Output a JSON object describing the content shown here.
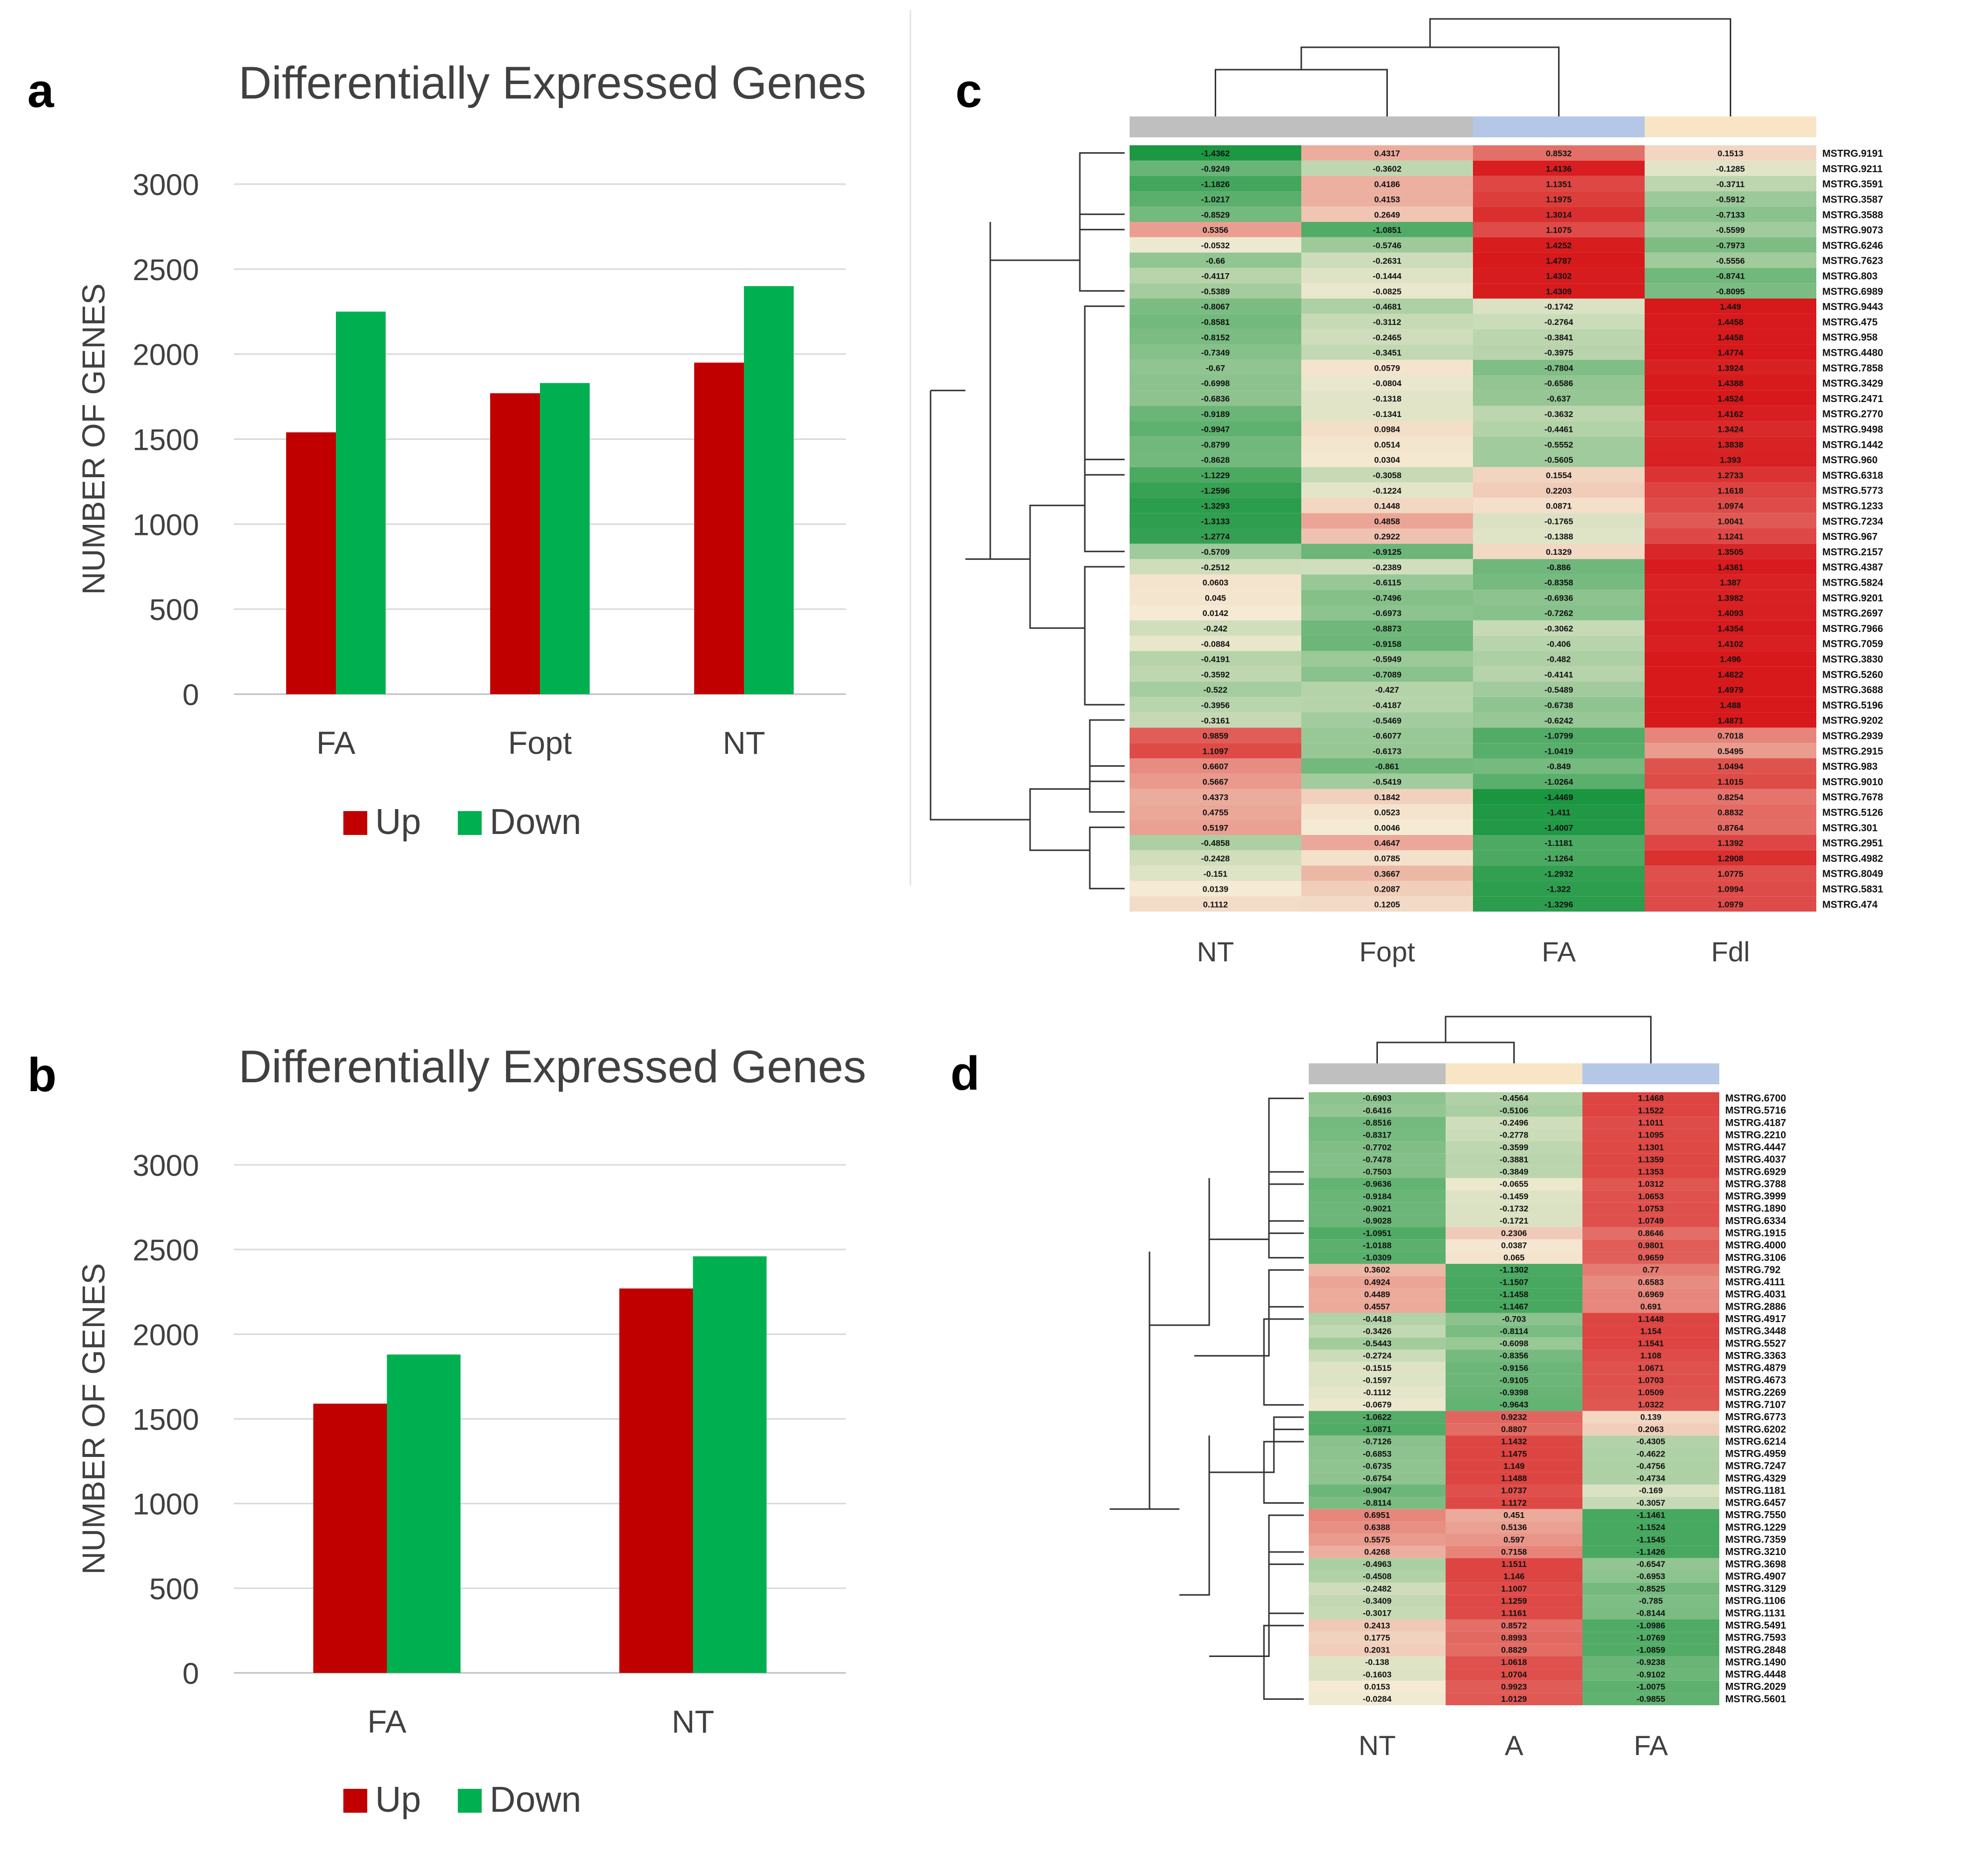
{
  "colors": {
    "up": "#c00000",
    "down": "#00b050",
    "grid": "#d9d9d9",
    "axis": "#bfbfbf",
    "text": "#404040",
    "hm_red": "#d7191c",
    "hm_green": "#1a9641",
    "hm_mid": "#f5ecd5",
    "grey": "#bfbfbf",
    "blue": "#b4c7e7",
    "beige": "#f8e5c5"
  },
  "chart_data": [
    {
      "panel": "a",
      "type": "bar",
      "title": "Differentially Expressed Genes",
      "ylabel": "NUMBER OF GENES",
      "xlabel": "",
      "categories": [
        "FA",
        "Fopt",
        "NT"
      ],
      "series": [
        {
          "name": "Up",
          "values": [
            1540,
            1770,
            1950
          ]
        },
        {
          "name": "Down",
          "values": [
            2250,
            1830,
            2400
          ]
        }
      ],
      "ylim": [
        0,
        3000
      ],
      "yticks": [
        0,
        500,
        1000,
        1500,
        2000,
        2500,
        3000
      ],
      "grid": true,
      "legend": "bottom"
    },
    {
      "panel": "b",
      "type": "bar",
      "title": "Differentially Expressed Genes",
      "ylabel": "NUMBER OF GENES",
      "xlabel": "",
      "categories": [
        "FA",
        "NT"
      ],
      "series": [
        {
          "name": "Up",
          "values": [
            1590,
            2270
          ]
        },
        {
          "name": "Down",
          "values": [
            1880,
            2460
          ]
        }
      ],
      "ylim": [
        0,
        3000
      ],
      "yticks": [
        0,
        500,
        1000,
        1500,
        2000,
        2500,
        3000
      ],
      "grid": true,
      "legend": "bottom"
    },
    {
      "panel": "c",
      "type": "heatmap",
      "columns": [
        "NT",
        "Fopt",
        "FA",
        "Fdl"
      ],
      "column_groups": [
        "grey",
        "grey",
        "blue",
        "beige"
      ],
      "rows": [
        [
          "MSTRG.9191",
          -1.4362,
          0.4317,
          0.8532,
          0.1513
        ],
        [
          "MSTRG.9211",
          -0.9249,
          -0.3602,
          1.4136,
          -0.1285
        ],
        [
          "MSTRG.3591",
          -1.1826,
          0.4186,
          1.1351,
          -0.3711
        ],
        [
          "MSTRG.3587",
          -1.0217,
          0.4153,
          1.1975,
          -0.5912
        ],
        [
          "MSTRG.3588",
          -0.8529,
          0.2649,
          1.3014,
          -0.7133
        ],
        [
          "MSTRG.9073",
          0.5356,
          -1.0851,
          1.1075,
          -0.5599
        ],
        [
          "MSTRG.6246",
          -0.0532,
          -0.5746,
          1.4252,
          -0.7973
        ],
        [
          "MSTRG.7623",
          -0.66,
          -0.2631,
          1.4787,
          -0.5556
        ],
        [
          "MSTRG.803",
          -0.4117,
          -0.1444,
          1.4302,
          -0.8741
        ],
        [
          "MSTRG.6989",
          -0.5389,
          -0.0825,
          1.4309,
          -0.8095
        ],
        [
          "MSTRG.9443",
          -0.8067,
          -0.4681,
          -0.1742,
          1.449
        ],
        [
          "MSTRG.475",
          -0.8581,
          -0.3112,
          -0.2764,
          1.4458
        ],
        [
          "MSTRG.958",
          -0.8152,
          -0.2465,
          -0.3841,
          1.4458
        ],
        [
          "MSTRG.4480",
          -0.7349,
          -0.3451,
          -0.3975,
          1.4774
        ],
        [
          "MSTRG.7858",
          -0.67,
          0.0579,
          -0.7804,
          1.3924
        ],
        [
          "MSTRG.3429",
          -0.6998,
          -0.0804,
          -0.6586,
          1.4388
        ],
        [
          "MSTRG.2471",
          -0.6836,
          -0.1318,
          -0.637,
          1.4524
        ],
        [
          "MSTRG.2770",
          -0.9189,
          -0.1341,
          -0.3632,
          1.4162
        ],
        [
          "MSTRG.9498",
          -0.9947,
          0.0984,
          -0.4461,
          1.3424
        ],
        [
          "MSTRG.1442",
          -0.8799,
          0.0514,
          -0.5552,
          1.3838
        ],
        [
          "MSTRG.960",
          -0.8628,
          0.0304,
          -0.5605,
          1.393
        ],
        [
          "MSTRG.6318",
          -1.1229,
          -0.3058,
          0.1554,
          1.2733
        ],
        [
          "MSTRG.5773",
          -1.2596,
          -0.1224,
          0.2203,
          1.1618
        ],
        [
          "MSTRG.1233",
          -1.3293,
          0.1448,
          0.0871,
          1.0974
        ],
        [
          "MSTRG.7234",
          -1.3133,
          0.4858,
          -0.1765,
          1.0041
        ],
        [
          "MSTRG.967",
          -1.2774,
          0.2922,
          -0.1388,
          1.1241
        ],
        [
          "MSTRG.2157",
          -0.5709,
          -0.9125,
          0.1329,
          1.3505
        ],
        [
          "MSTRG.4387",
          -0.2512,
          -0.2389,
          -0.886,
          1.4361
        ],
        [
          "MSTRG.5824",
          0.0603,
          -0.6115,
          -0.8358,
          1.387
        ],
        [
          "MSTRG.9201",
          0.045,
          -0.7496,
          -0.6936,
          1.3982
        ],
        [
          "MSTRG.2697",
          0.0142,
          -0.6973,
          -0.7262,
          1.4093
        ],
        [
          "MSTRG.7966",
          -0.242,
          -0.8873,
          -0.3062,
          1.4354
        ],
        [
          "MSTRG.7059",
          -0.0884,
          -0.9158,
          -0.406,
          1.4102
        ],
        [
          "MSTRG.3830",
          -0.4191,
          -0.5949,
          -0.482,
          1.496
        ],
        [
          "MSTRG.5260",
          -0.3592,
          -0.7089,
          -0.4141,
          1.4822
        ],
        [
          "MSTRG.3688",
          -0.522,
          -0.427,
          -0.5489,
          1.4979
        ],
        [
          "MSTRG.5196",
          -0.3956,
          -0.4187,
          -0.6738,
          1.488
        ],
        [
          "MSTRG.9202",
          -0.3161,
          -0.5469,
          -0.6242,
          1.4871
        ],
        [
          "MSTRG.2939",
          0.9859,
          -0.6077,
          -1.0799,
          0.7018
        ],
        [
          "MSTRG.2915",
          1.1097,
          -0.6173,
          -1.0419,
          0.5495
        ],
        [
          "MSTRG.983",
          0.6607,
          -0.861,
          -0.849,
          1.0494
        ],
        [
          "MSTRG.9010",
          0.5667,
          -0.5419,
          -1.0264,
          1.1015
        ],
        [
          "MSTRG.7678",
          0.4373,
          0.1842,
          -1.4469,
          0.8254
        ],
        [
          "MSTRG.5126",
          0.4755,
          0.0523,
          -1.411,
          0.8832
        ],
        [
          "MSTRG.301",
          0.5197,
          0.0046,
          -1.4007,
          0.8764
        ],
        [
          "MSTRG.2951",
          -0.4858,
          0.4647,
          -1.1181,
          1.1392
        ],
        [
          "MSTRG.4982",
          -0.2428,
          0.0785,
          -1.1264,
          1.2908
        ],
        [
          "MSTRG.8049",
          -0.151,
          0.3667,
          -1.2932,
          1.0775
        ],
        [
          "MSTRG.5831",
          0.0139,
          0.2087,
          -1.322,
          1.0994
        ],
        [
          "MSTRG.474",
          0.1112,
          0.1205,
          -1.3296,
          1.0979
        ]
      ]
    },
    {
      "panel": "d",
      "type": "heatmap",
      "columns": [
        "NT",
        "A",
        "FA"
      ],
      "column_groups": [
        "grey",
        "beige",
        "blue"
      ],
      "rows": [
        [
          "MSTRG.6700",
          -0.6903,
          -0.4564,
          1.1468
        ],
        [
          "MSTRG.5716",
          -0.6416,
          -0.5106,
          1.1522
        ],
        [
          "MSTRG.4187",
          -0.8516,
          -0.2496,
          1.1011
        ],
        [
          "MSTRG.2210",
          -0.8317,
          -0.2778,
          1.1095
        ],
        [
          "MSTRG.4447",
          -0.7702,
          -0.3599,
          1.1301
        ],
        [
          "MSTRG.4037",
          -0.7478,
          -0.3881,
          1.1359
        ],
        [
          "MSTRG.6929",
          -0.7503,
          -0.3849,
          1.1353
        ],
        [
          "MSTRG.3788",
          -0.9636,
          -0.0655,
          1.0312
        ],
        [
          "MSTRG.3999",
          -0.9184,
          -0.1459,
          1.0653
        ],
        [
          "MSTRG.1890",
          -0.9021,
          -0.1732,
          1.0753
        ],
        [
          "MSTRG.6334",
          -0.9028,
          -0.1721,
          1.0749
        ],
        [
          "MSTRG.1915",
          -1.0951,
          0.2306,
          0.8646
        ],
        [
          "MSTRG.4000",
          -1.0188,
          0.0387,
          0.9801
        ],
        [
          "MSTRG.3106",
          -1.0309,
          0.065,
          0.9659
        ],
        [
          "MSTRG.792",
          0.3602,
          -1.1302,
          0.77
        ],
        [
          "MSTRG.4111",
          0.4924,
          -1.1507,
          0.6583
        ],
        [
          "MSTRG.4031",
          0.4489,
          -1.1458,
          0.6969
        ],
        [
          "MSTRG.2886",
          0.4557,
          -1.1467,
          0.691
        ],
        [
          "MSTRG.4917",
          -0.4418,
          -0.703,
          1.1448
        ],
        [
          "MSTRG.3448",
          -0.3426,
          -0.8114,
          1.154
        ],
        [
          "MSTRG.5527",
          -0.5443,
          -0.6098,
          1.1541
        ],
        [
          "MSTRG.3363",
          -0.2724,
          -0.8356,
          1.108
        ],
        [
          "MSTRG.4879",
          -0.1515,
          -0.9156,
          1.0671
        ],
        [
          "MSTRG.4673",
          -0.1597,
          -0.9105,
          1.0703
        ],
        [
          "MSTRG.2269",
          -0.1112,
          -0.9398,
          1.0509
        ],
        [
          "MSTRG.7107",
          -0.0679,
          -0.9643,
          1.0322
        ],
        [
          "MSTRG.6773",
          -1.0622,
          0.9232,
          0.139
        ],
        [
          "MSTRG.6202",
          -1.0871,
          0.8807,
          0.2063
        ],
        [
          "MSTRG.6214",
          -0.7126,
          1.1432,
          -0.4305
        ],
        [
          "MSTRG.4959",
          -0.6853,
          1.1475,
          -0.4622
        ],
        [
          "MSTRG.7247",
          -0.6735,
          1.149,
          -0.4756
        ],
        [
          "MSTRG.4329",
          -0.6754,
          1.1488,
          -0.4734
        ],
        [
          "MSTRG.1181",
          -0.9047,
          1.0737,
          -0.169
        ],
        [
          "MSTRG.6457",
          -0.8114,
          1.1172,
          -0.3057
        ],
        [
          "MSTRG.7550",
          0.6951,
          0.451,
          -1.1461
        ],
        [
          "MSTRG.1229",
          0.6388,
          0.5136,
          -1.1524
        ],
        [
          "MSTRG.7359",
          0.5575,
          0.597,
          -1.1545
        ],
        [
          "MSTRG.3210",
          0.4268,
          0.7158,
          -1.1426
        ],
        [
          "MSTRG.3698",
          -0.4963,
          1.1511,
          -0.6547
        ],
        [
          "MSTRG.4907",
          -0.4508,
          1.146,
          -0.6953
        ],
        [
          "MSTRG.3129",
          -0.2482,
          1.1007,
          -0.8525
        ],
        [
          "MSTRG.1106",
          -0.3409,
          1.1259,
          -0.785
        ],
        [
          "MSTRG.1131",
          -0.3017,
          1.1161,
          -0.8144
        ],
        [
          "MSTRG.5491",
          0.2413,
          0.8572,
          -1.0986
        ],
        [
          "MSTRG.7593",
          0.1775,
          0.8993,
          -1.0769
        ],
        [
          "MSTRG.2848",
          0.2031,
          0.8829,
          -1.0859
        ],
        [
          "MSTRG.1490",
          -0.138,
          1.0618,
          -0.9238
        ],
        [
          "MSTRG.4448",
          -0.1603,
          1.0704,
          -0.9102
        ],
        [
          "MSTRG.2029",
          0.0153,
          0.9923,
          -1.0075
        ],
        [
          "MSTRG.5601",
          -0.0284,
          1.0129,
          -0.9855
        ]
      ]
    }
  ],
  "panel_letters": {
    "a": "a",
    "b": "b",
    "c": "c",
    "d": "d"
  },
  "legend": {
    "up": "Up",
    "down": "Down"
  }
}
